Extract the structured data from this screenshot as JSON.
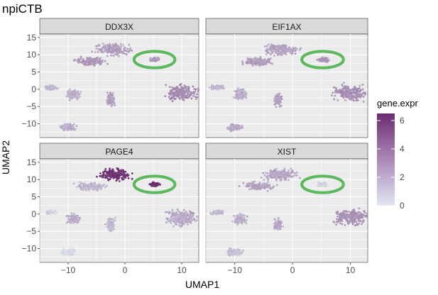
{
  "title": "npiCTB",
  "chart_data": {
    "type": "scatter",
    "layout": "facet-grid-2x2",
    "title": "npiCTB",
    "xlabel": "UMAP1",
    "ylabel": "UMAP2",
    "xlim": [
      -15,
      13
    ],
    "ylim": [
      -14,
      16
    ],
    "x_ticks": [
      -10,
      0,
      10
    ],
    "x_tick_labels": [
      "−10",
      "0",
      "10"
    ],
    "y_ticks": [
      15,
      10,
      5,
      0,
      -5,
      -10
    ],
    "y_tick_labels": [
      "15",
      "10",
      "5",
      "0",
      "−5",
      "−10"
    ],
    "grid": true,
    "panel_background": "#ebebeb",
    "strip_background": "#d9d9d9",
    "legend": {
      "title": "gene.expr",
      "placement": "right",
      "range": [
        0,
        6.5
      ],
      "ticks": [
        6,
        4,
        2,
        0
      ],
      "tick_labels": [
        "6",
        "4",
        "2",
        "0"
      ],
      "color_low": "#dfe8f2",
      "color_high": "#6a2c6e"
    },
    "highlight": {
      "shape": "ellipse",
      "color": "#5cb85c",
      "center": [
        5.2,
        8.6
      ],
      "radius": [
        3.6,
        2.4
      ]
    },
    "clusters": [
      {
        "center": [
          -2,
          11.5
        ],
        "spread": [
          4.0,
          2.2
        ]
      },
      {
        "center": [
          -6,
          8
        ],
        "spread": [
          3.5,
          1.6
        ]
      },
      {
        "center": [
          5.2,
          8.6
        ],
        "spread": [
          1.2,
          0.8
        ]
      },
      {
        "center": [
          -13,
          0.5
        ],
        "spread": [
          1.5,
          0.8
        ]
      },
      {
        "center": [
          -9,
          -1.5
        ],
        "spread": [
          1.5,
          2.0
        ]
      },
      {
        "center": [
          -2.5,
          -3
        ],
        "spread": [
          1.0,
          2.5
        ]
      },
      {
        "center": [
          10,
          -1
        ],
        "spread": [
          3.8,
          3.0
        ]
      },
      {
        "center": [
          -10,
          -11
        ],
        "spread": [
          1.8,
          1.3
        ]
      }
    ],
    "panels": [
      {
        "gene": "DDX3X",
        "cluster_levels": [
          2.5,
          2.8,
          2.8,
          1.7,
          1.9,
          2.5,
          3.2,
          2.1
        ]
      },
      {
        "gene": "EIF1AX",
        "cluster_levels": [
          2.4,
          2.6,
          3.0,
          1.8,
          2.0,
          2.5,
          3.0,
          2.2
        ]
      },
      {
        "gene": "PAGE4",
        "cluster_levels": [
          6.2,
          1.8,
          6.4,
          0.8,
          2.0,
          1.5,
          2.2,
          0.6
        ]
      },
      {
        "gene": "XIST",
        "cluster_levels": [
          2.3,
          2.4,
          0.8,
          1.6,
          2.0,
          2.2,
          3.0,
          1.4
        ]
      }
    ]
  }
}
